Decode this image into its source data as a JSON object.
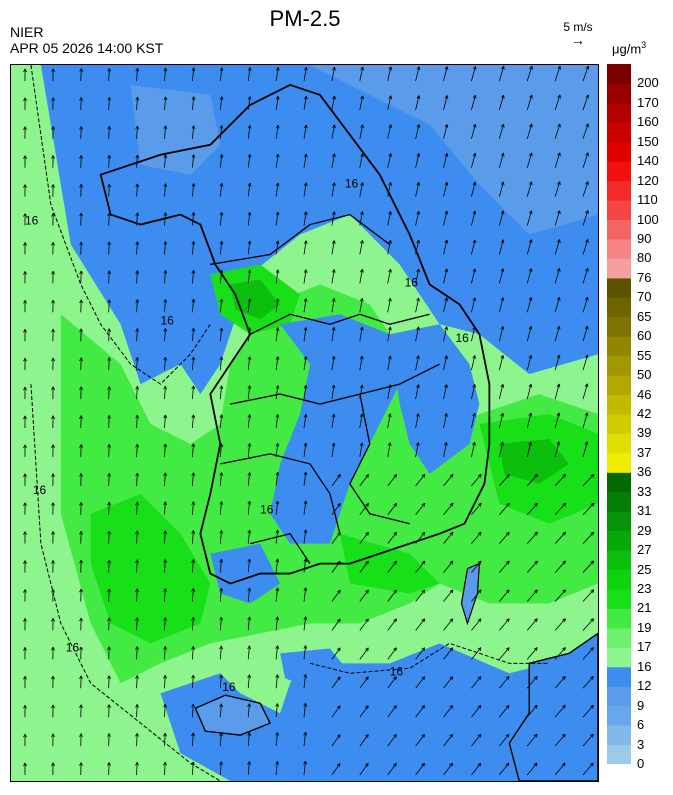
{
  "header": {
    "title": "PM-2.5",
    "source": "NIER",
    "datetime": "APR 05 2026 14:00 KST",
    "wind_reference": "5 m/s",
    "unit_base": "μg/m",
    "unit_exp": "3"
  },
  "legend": {
    "levels": [
      {
        "label": "0",
        "color": "#9ccbe8"
      },
      {
        "label": "3",
        "color": "#82b9ea"
      },
      {
        "label": "6",
        "color": "#6aa8ec"
      },
      {
        "label": "9",
        "color": "#5a9cea"
      },
      {
        "label": "12",
        "color": "#3d8df0"
      },
      {
        "label": "16",
        "color": "#8ef58e"
      },
      {
        "label": "17",
        "color": "#6df06d"
      },
      {
        "label": "19",
        "color": "#44ea44"
      },
      {
        "label": "21",
        "color": "#18e018"
      },
      {
        "label": "23",
        "color": "#0fd30f"
      },
      {
        "label": "25",
        "color": "#0cbf0c"
      },
      {
        "label": "27",
        "color": "#09a809"
      },
      {
        "label": "29",
        "color": "#079307"
      },
      {
        "label": "31",
        "color": "#057e05"
      },
      {
        "label": "33",
        "color": "#036a03"
      },
      {
        "label": "36",
        "color": "#f0ee00"
      },
      {
        "label": "37",
        "color": "#e2dd00"
      },
      {
        "label": "39",
        "color": "#d2cb00"
      },
      {
        "label": "42",
        "color": "#c2b900"
      },
      {
        "label": "46",
        "color": "#b2a800"
      },
      {
        "label": "50",
        "color": "#a29700"
      },
      {
        "label": "55",
        "color": "#918600"
      },
      {
        "label": "60",
        "color": "#807400"
      },
      {
        "label": "65",
        "color": "#6f6300"
      },
      {
        "label": "70",
        "color": "#5d5300"
      },
      {
        "label": "76",
        "color": "#f5a0a0"
      },
      {
        "label": "80",
        "color": "#f58484"
      },
      {
        "label": "90",
        "color": "#f56464"
      },
      {
        "label": "100",
        "color": "#f54646"
      },
      {
        "label": "110",
        "color": "#f52a2a"
      },
      {
        "label": "120",
        "color": "#f21010"
      },
      {
        "label": "140",
        "color": "#e00000"
      },
      {
        "label": "150",
        "color": "#c80000"
      },
      {
        "label": "160",
        "color": "#b00000"
      },
      {
        "label": "170",
        "color": "#980000"
      },
      {
        "label": "200",
        "color": "#7a0000"
      }
    ]
  },
  "map": {
    "contour_labels": [
      "16",
      "16",
      "16",
      "16",
      "16",
      "16",
      "16",
      "16",
      "16",
      "16"
    ],
    "wind_direction": "from south, turning north-northeast",
    "colors": {
      "sea_low": "#3d8df0",
      "sea_lower": "#5a9cea",
      "green_light": "#8ef58e",
      "green_mid": "#44ea44",
      "green_strong": "#18e018",
      "green_dark": "#0cbf0c",
      "border": "#000000"
    }
  }
}
